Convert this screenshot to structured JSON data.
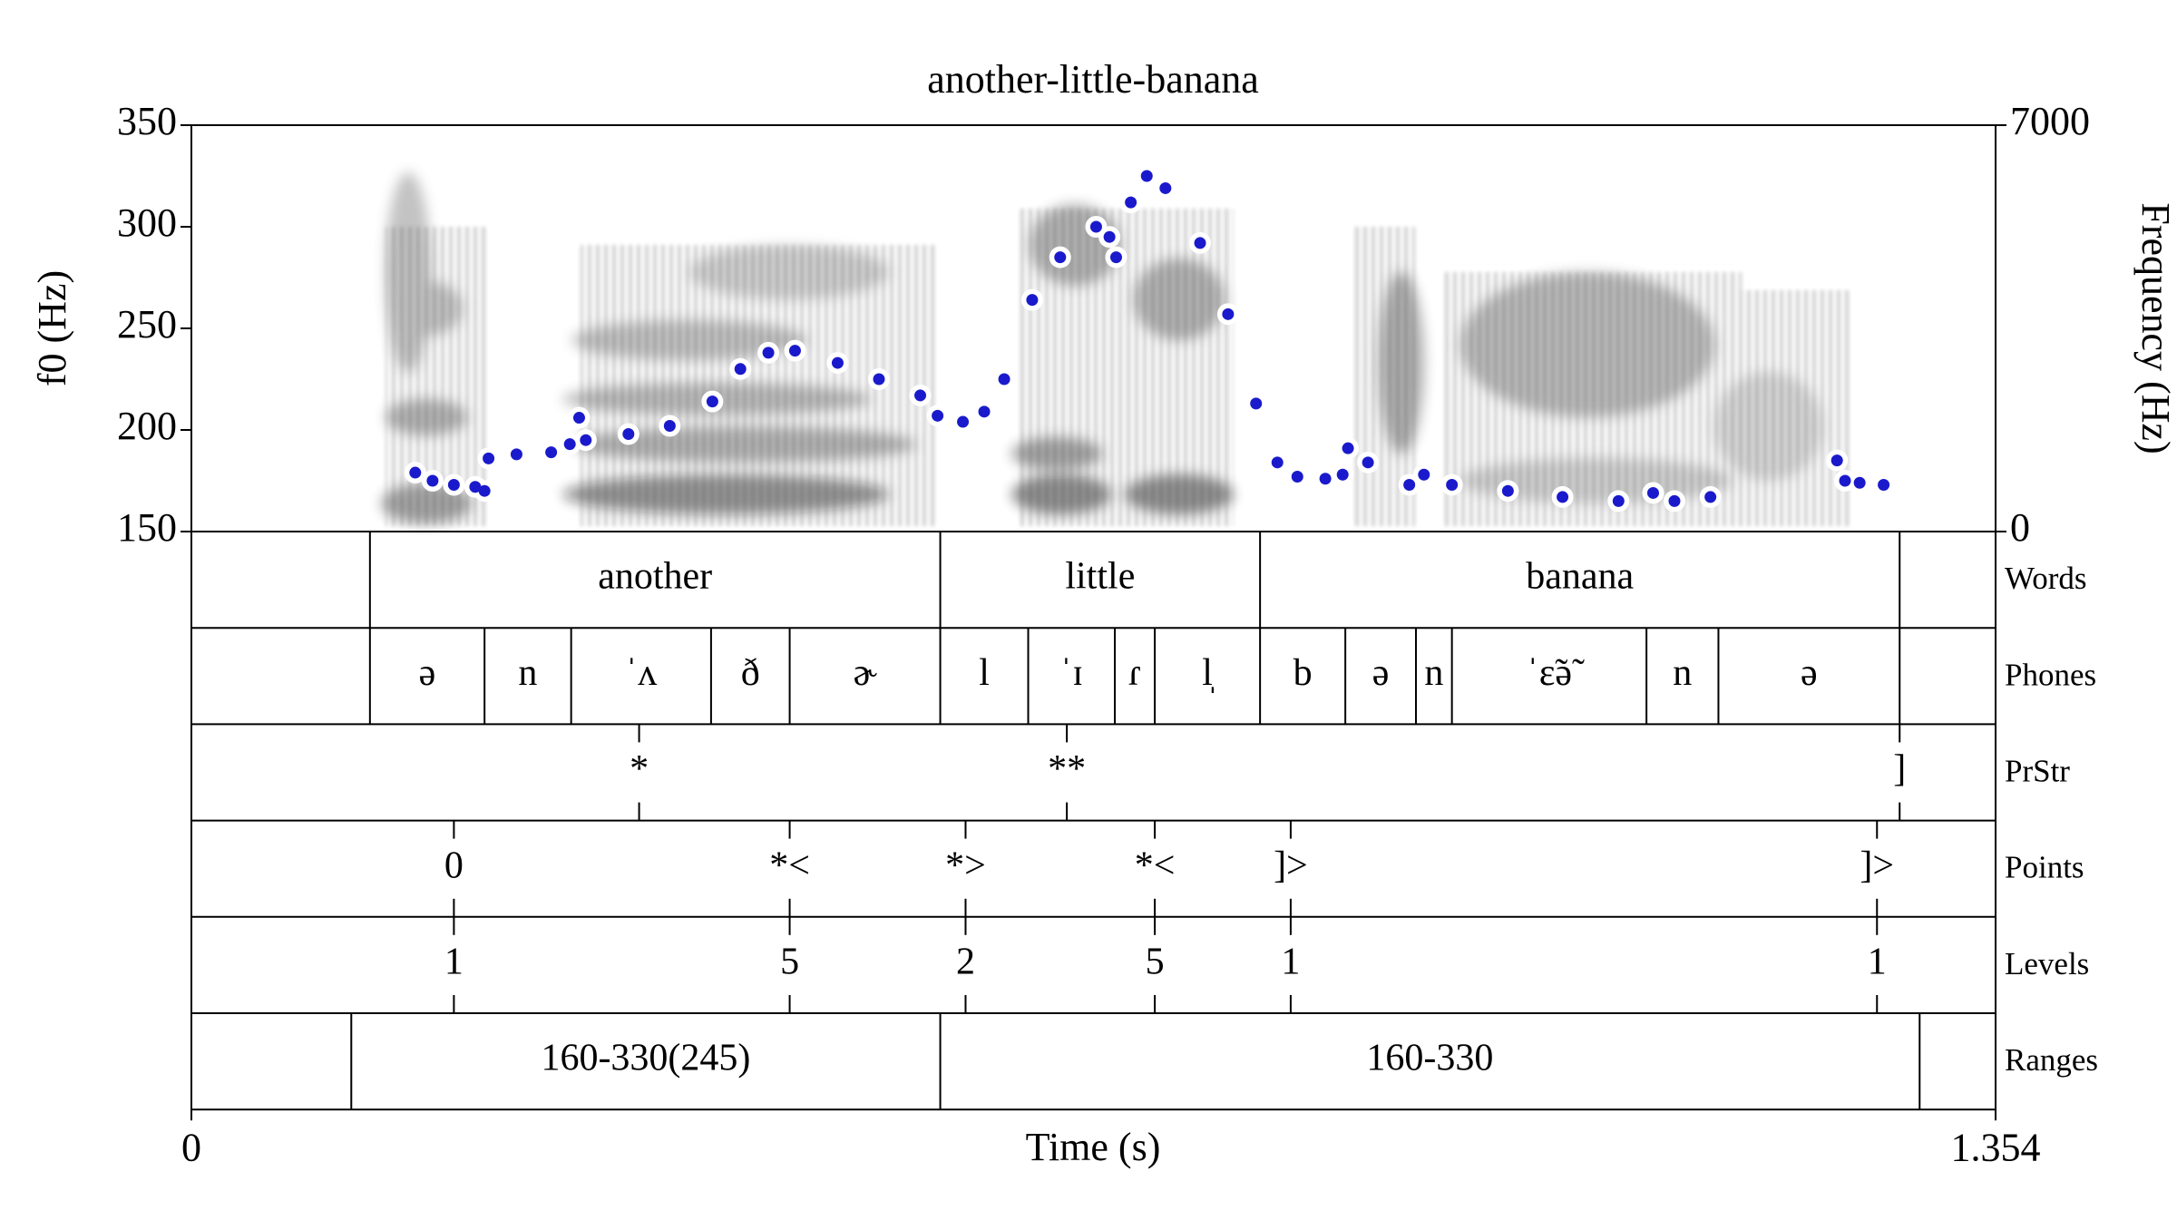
{
  "chart_data": {
    "type": "line",
    "title": "another-little-banana",
    "xlabel": "Time (s)",
    "ylabel": "f0 (Hz)",
    "y2label": "Frequency (Hz)",
    "xlim": [
      0,
      1.354
    ],
    "xticks": [
      0,
      1.354
    ],
    "ylim": [
      150,
      350
    ],
    "yticks": [
      150,
      200,
      250,
      300,
      350
    ],
    "y2lim": [
      0,
      7000
    ],
    "y2ticks": [
      0,
      7000
    ],
    "color": "#1a1acc",
    "x": [
      0.168,
      0.181,
      0.197,
      0.213,
      0.22,
      0.223,
      0.244,
      0.27,
      0.284,
      0.291,
      0.296,
      0.328,
      0.359,
      0.391,
      0.412,
      0.433,
      0.453,
      0.485,
      0.516,
      0.547,
      0.56,
      0.579,
      0.595,
      0.61,
      0.631,
      0.652,
      0.679,
      0.689,
      0.694,
      0.705,
      0.717,
      0.731,
      0.757,
      0.778,
      0.799,
      0.815,
      0.83,
      0.851,
      0.864,
      0.868,
      0.883,
      0.914,
      0.925,
      0.946,
      0.988,
      1.029,
      1.071,
      1.097,
      1.113,
      1.14,
      1.235,
      1.241,
      1.252,
      1.27
    ],
    "values": [
      179,
      175,
      173,
      172,
      170,
      186,
      188,
      189,
      193,
      206,
      195,
      198,
      202,
      214,
      230,
      238,
      239,
      233,
      225,
      217,
      207,
      204,
      209,
      225,
      264,
      285,
      300,
      295,
      285,
      312,
      325,
      319,
      292,
      257,
      213,
      184,
      177,
      176,
      178,
      191,
      184,
      173,
      178,
      173,
      170,
      167,
      165,
      169,
      165,
      167,
      185,
      175,
      174,
      173
    ],
    "tiers": [
      {
        "name": "Words",
        "intervals": [
          {
            "label": "another",
            "start": 0.134,
            "end": 0.562
          },
          {
            "label": "little",
            "start": 0.562,
            "end": 0.802
          },
          {
            "label": "banana",
            "start": 0.802,
            "end": 1.282
          }
        ]
      },
      {
        "name": "Phones",
        "intervals": [
          {
            "label": "ə",
            "start": 0.134,
            "end": 0.22
          },
          {
            "label": "n",
            "start": 0.22,
            "end": 0.285
          },
          {
            "label": "ˈʌ",
            "start": 0.285,
            "end": 0.39
          },
          {
            "label": "ð",
            "start": 0.39,
            "end": 0.449
          },
          {
            "label": "ɚ",
            "start": 0.449,
            "end": 0.562
          },
          {
            "label": "l",
            "start": 0.562,
            "end": 0.628
          },
          {
            "label": "ˈɪ",
            "start": 0.628,
            "end": 0.693
          },
          {
            "label": "ɾ",
            "start": 0.693,
            "end": 0.723
          },
          {
            "label": "l̩",
            "start": 0.723,
            "end": 0.802
          },
          {
            "label": "b",
            "start": 0.802,
            "end": 0.866
          },
          {
            "label": "ə",
            "start": 0.866,
            "end": 0.919
          },
          {
            "label": "n",
            "start": 0.919,
            "end": 0.946
          },
          {
            "label": "ˈɛ̃ə̃",
            "start": 0.946,
            "end": 1.092
          },
          {
            "label": "n",
            "start": 1.092,
            "end": 1.146
          },
          {
            "label": "ə",
            "start": 1.146,
            "end": 1.282
          }
        ]
      },
      {
        "name": "PrStr",
        "points": [
          {
            "label": "*",
            "time": 0.336
          },
          {
            "label": "**",
            "time": 0.657
          },
          {
            "label": "]",
            "time": 1.282
          }
        ]
      },
      {
        "name": "Points",
        "points": [
          {
            "label": "0",
            "time": 0.197
          },
          {
            "label": "*<",
            "time": 0.449
          },
          {
            "label": "*>",
            "time": 0.581
          },
          {
            "label": "*<",
            "time": 0.723
          },
          {
            "label": "]>",
            "time": 0.825
          },
          {
            "label": "]>",
            "time": 1.265
          }
        ]
      },
      {
        "name": "Levels",
        "points": [
          {
            "label": "1",
            "time": 0.197
          },
          {
            "label": "5",
            "time": 0.449
          },
          {
            "label": "2",
            "time": 0.581
          },
          {
            "label": "5",
            "time": 0.723
          },
          {
            "label": "1",
            "time": 0.825
          },
          {
            "label": "1",
            "time": 1.265
          }
        ]
      },
      {
        "name": "Ranges",
        "intervals": [
          {
            "label": "160-330(245)",
            "start": 0.12,
            "end": 0.562
          },
          {
            "label": "160-330",
            "start": 0.562,
            "end": 1.297
          }
        ]
      }
    ]
  }
}
